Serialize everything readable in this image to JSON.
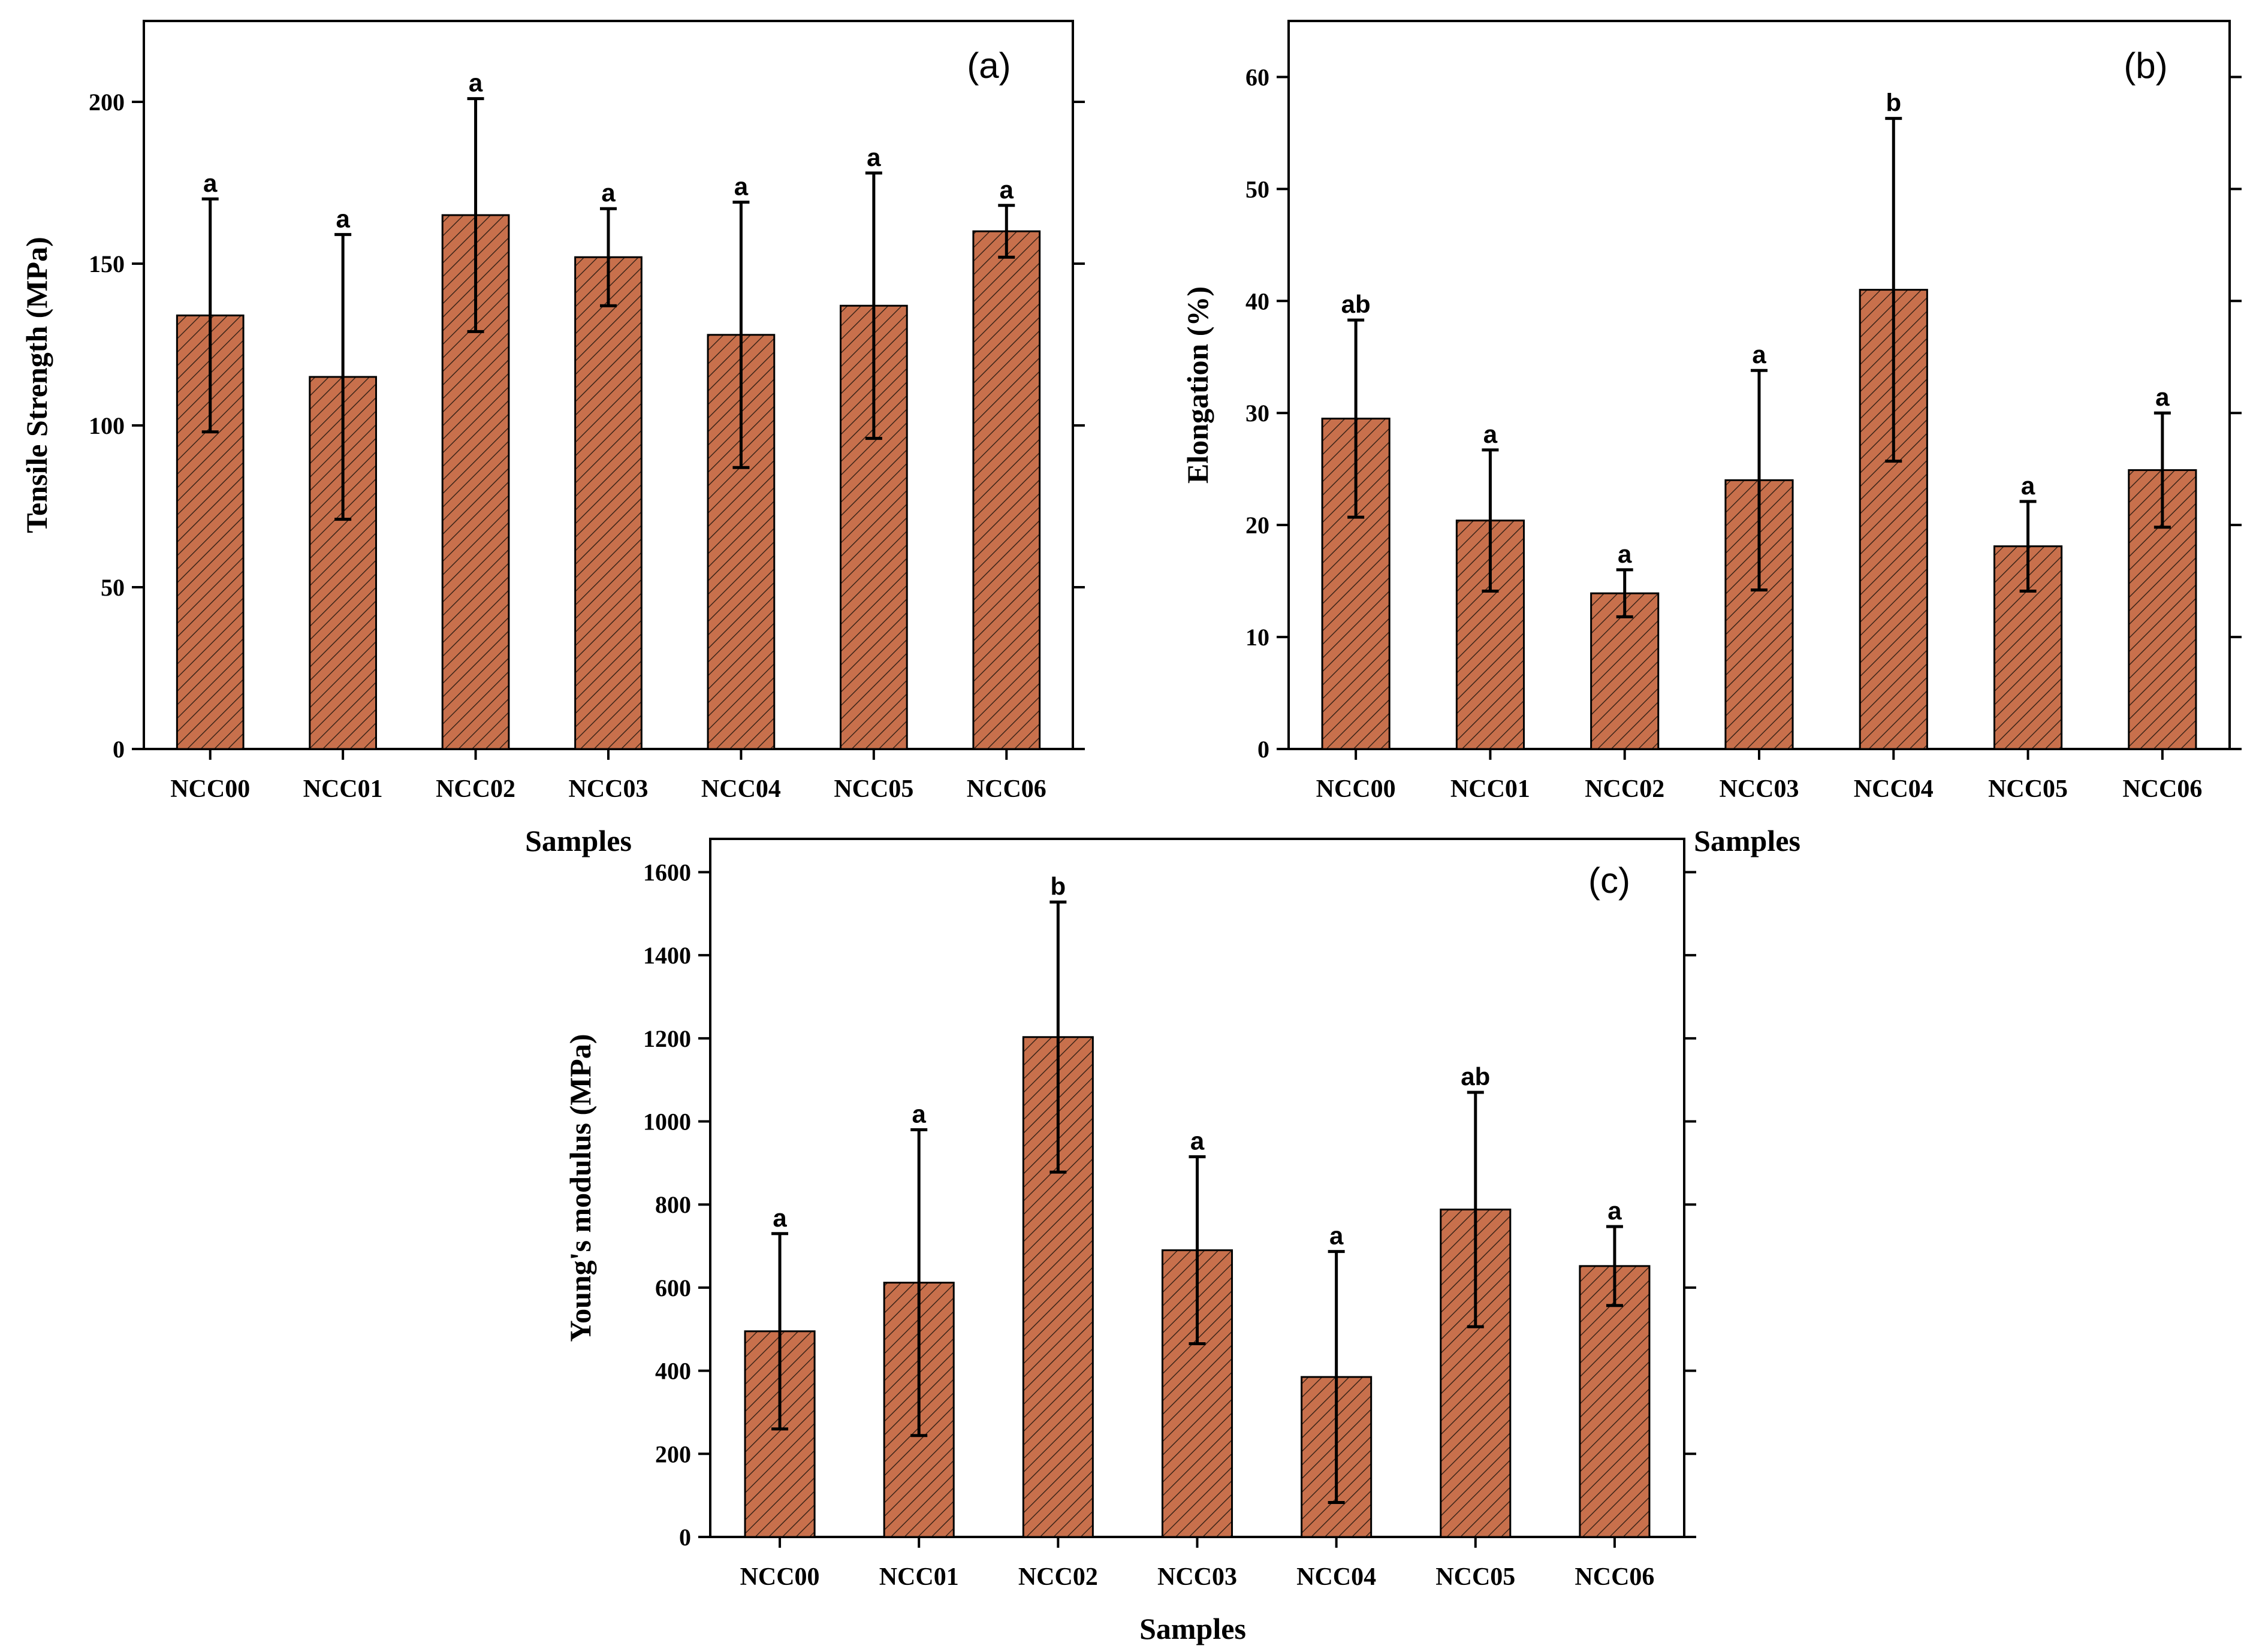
{
  "colors": {
    "bar_fill": "#c8704c",
    "hatch": "#3b2418",
    "axis": "#000000"
  },
  "chart_data": [
    {
      "type": "bar",
      "panel_label": "(a)",
      "title": "",
      "xlabel": "Samples",
      "ylabel": "Tensile Strength (MPa)",
      "ylim": [
        0,
        225
      ],
      "yticks": [
        0,
        50,
        100,
        150,
        200
      ],
      "categories": [
        "NCC00",
        "NCC01",
        "NCC02",
        "NCC03",
        "NCC04",
        "NCC05",
        "NCC06"
      ],
      "values": [
        134,
        115,
        165,
        152,
        128,
        137,
        160
      ],
      "errors": [
        36,
        44,
        36,
        15,
        41,
        41,
        8
      ],
      "significance": [
        "a",
        "a",
        "a",
        "a",
        "a",
        "a",
        "a"
      ]
    },
    {
      "type": "bar",
      "panel_label": "(b)",
      "title": "",
      "xlabel": "Samples",
      "ylabel": "Elongation (%)",
      "ylim": [
        0,
        65
      ],
      "yticks": [
        0,
        10,
        20,
        30,
        40,
        50,
        60
      ],
      "categories": [
        "NCC00",
        "NCC01",
        "NCC02",
        "NCC03",
        "NCC04",
        "NCC05",
        "NCC06"
      ],
      "values": [
        29.5,
        20.4,
        13.9,
        24.0,
        41.0,
        18.1,
        24.9
      ],
      "errors": [
        8.8,
        6.3,
        2.1,
        9.8,
        15.3,
        4.0,
        5.1
      ],
      "significance": [
        "ab",
        "a",
        "a",
        "a",
        "b",
        "a",
        "a"
      ]
    },
    {
      "type": "bar",
      "panel_label": "(c)",
      "title": "",
      "xlabel": "Samples",
      "ylabel": "Young's modulus (MPa)",
      "ylim": [
        0,
        1680
      ],
      "yticks": [
        0,
        200,
        400,
        600,
        800,
        1000,
        1200,
        1400,
        1600
      ],
      "categories": [
        "NCC00",
        "NCC01",
        "NCC02",
        "NCC03",
        "NCC04",
        "NCC05",
        "NCC06"
      ],
      "values": [
        495,
        612,
        1203,
        690,
        385,
        788,
        652
      ],
      "errors": [
        235,
        368,
        325,
        225,
        302,
        282,
        95
      ],
      "significance": [
        "a",
        "a",
        "b",
        "a",
        "a",
        "ab",
        "a"
      ]
    }
  ]
}
